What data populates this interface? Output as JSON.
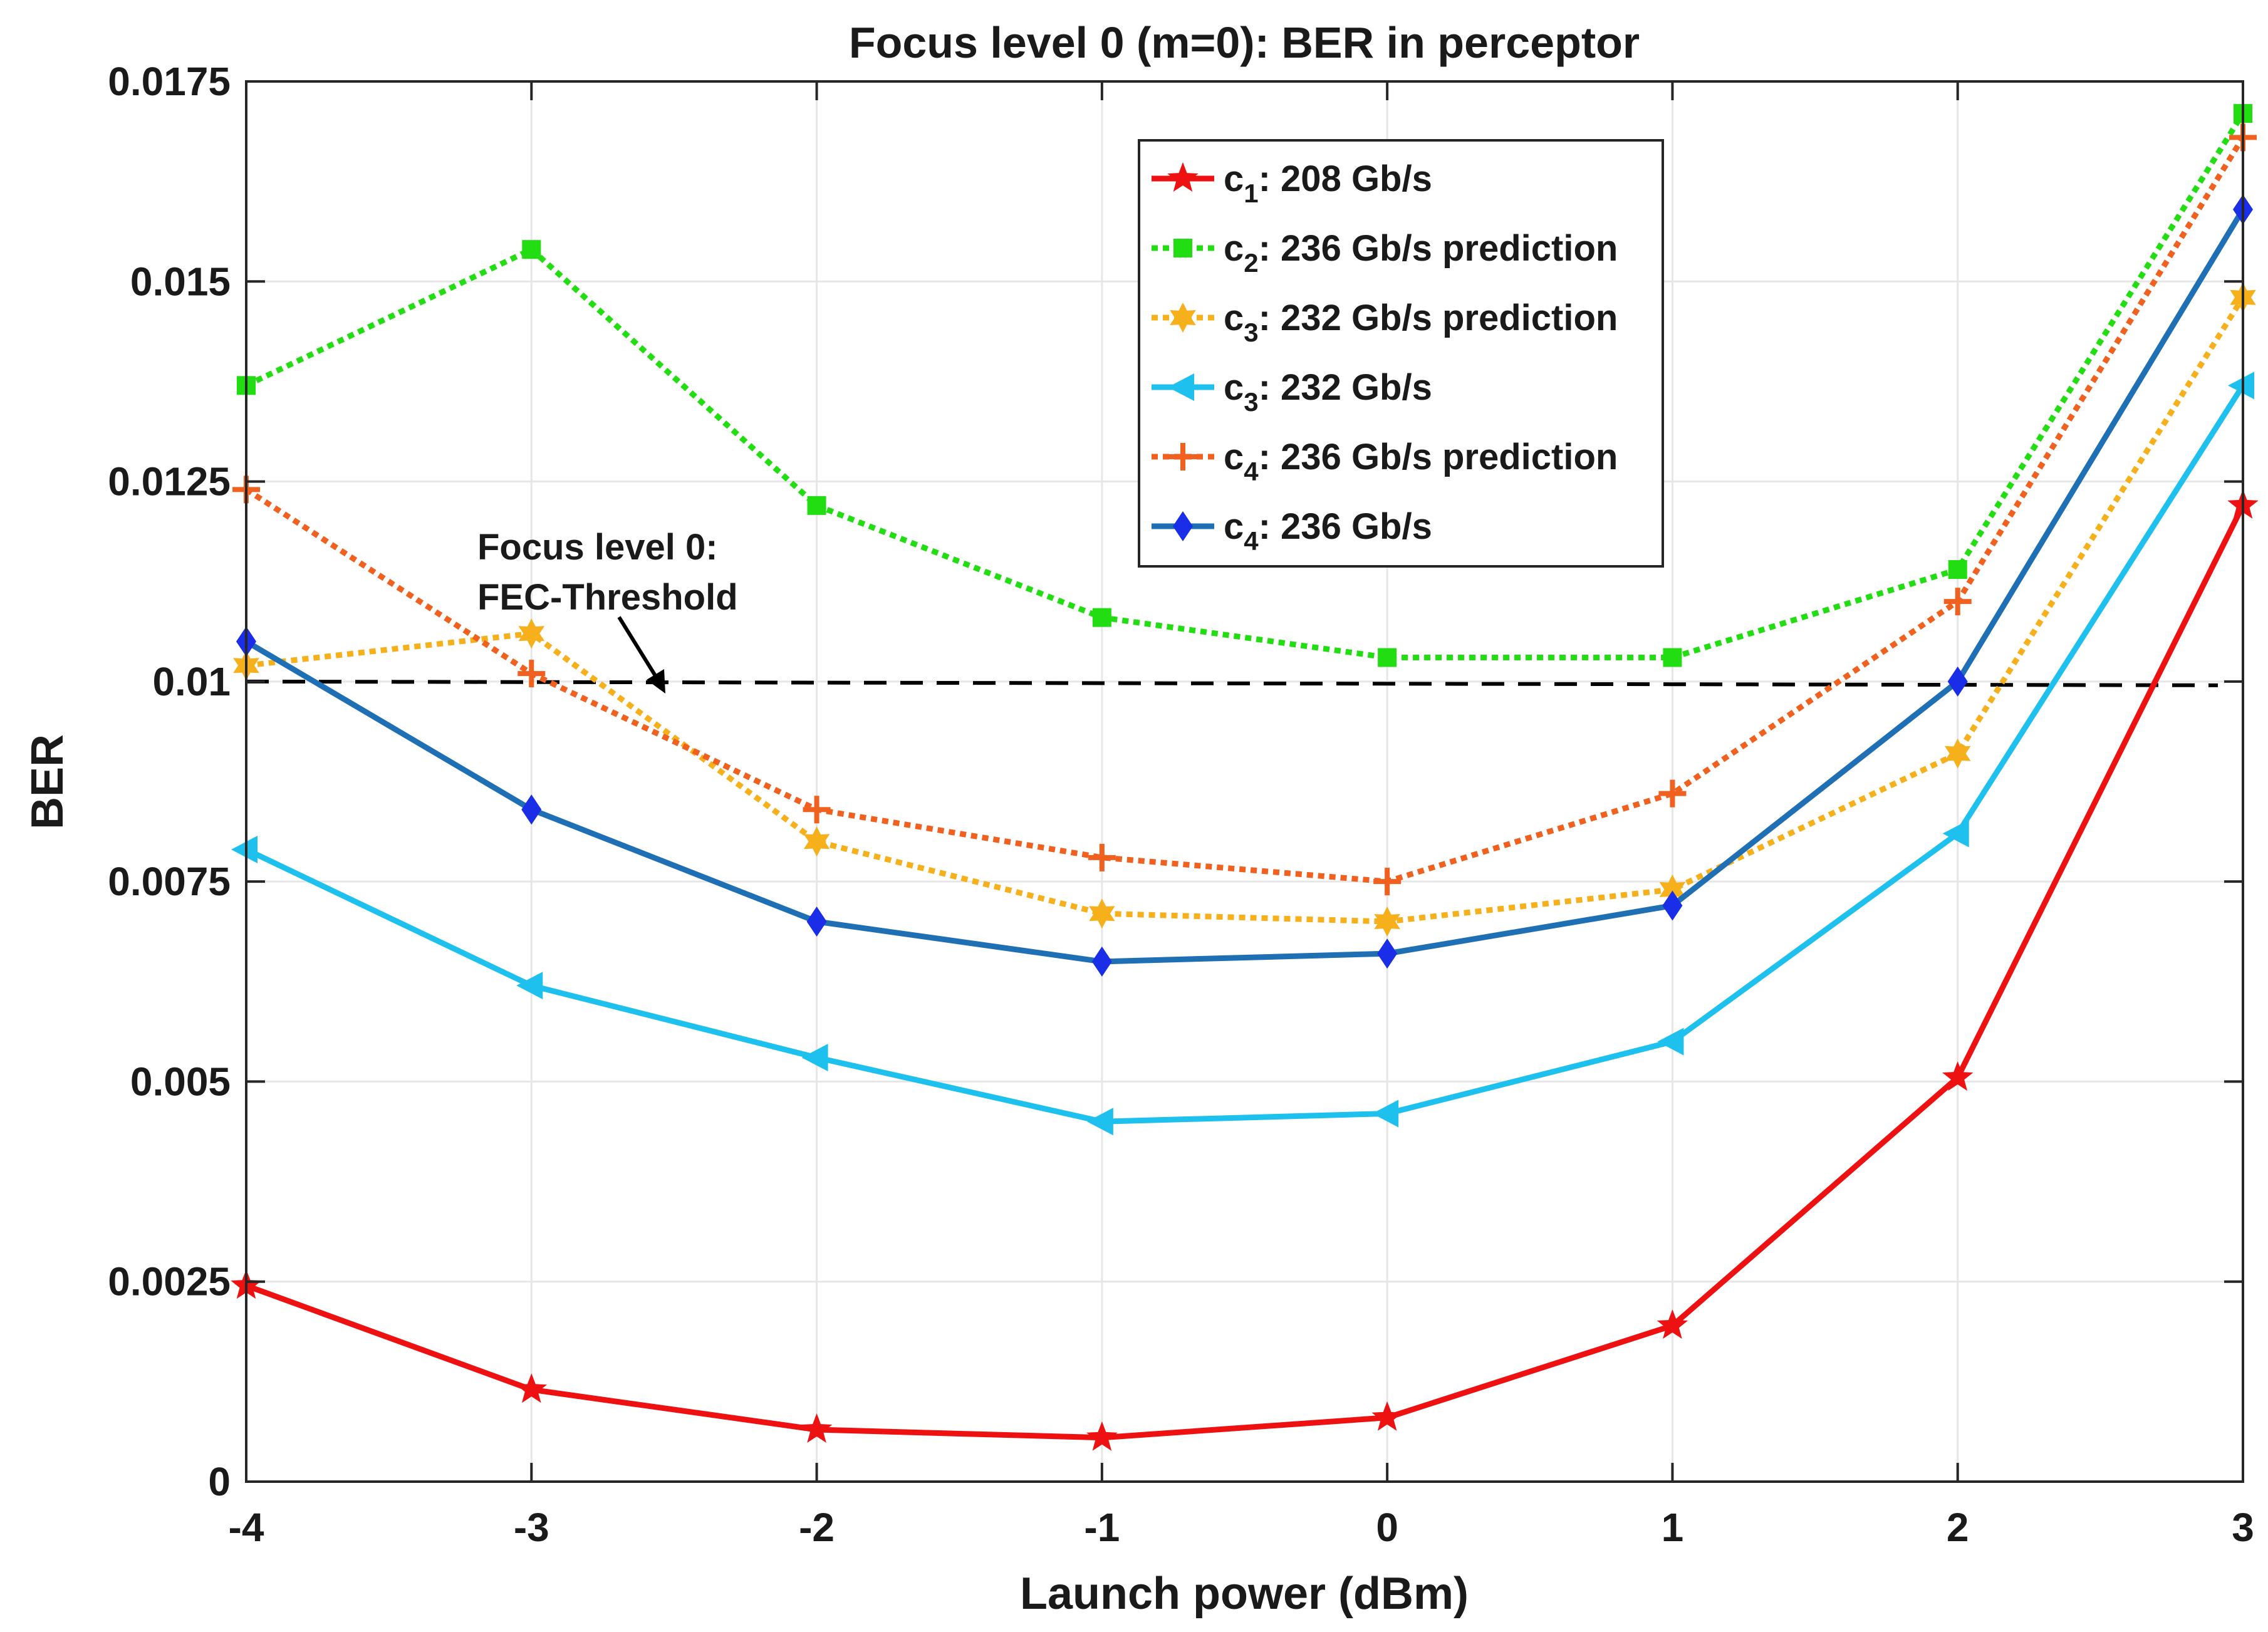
{
  "chart_data": {
    "type": "line",
    "title": "Focus level 0 (m=0): BER in perceptor",
    "xlabel": "Launch power (dBm)",
    "ylabel": "BER",
    "xlim": [
      -4,
      3
    ],
    "ylim": [
      0,
      0.0175
    ],
    "x": [
      -4,
      -3,
      -2,
      -1,
      0,
      1,
      2,
      3
    ],
    "xticks": [
      "-4",
      "-3",
      "-2",
      "-1",
      "0",
      "1",
      "2",
      "3"
    ],
    "yticks": [
      {
        "value": 0,
        "label": "0"
      },
      {
        "value": 0.0025,
        "label": "0.0025"
      },
      {
        "value": 0.005,
        "label": "0.005"
      },
      {
        "value": 0.0075,
        "label": "0.0075"
      },
      {
        "value": 0.01,
        "label": "0.01"
      },
      {
        "value": 0.0125,
        "label": "0.0125"
      },
      {
        "value": 0.015,
        "label": "0.015"
      },
      {
        "value": 0.0175,
        "label": "0.0175"
      }
    ],
    "grid": true,
    "legend_position": "top-right",
    "series": [
      {
        "key": "c1",
        "sub": "1",
        "rest": ": 208 Gb/s",
        "color": "#ee1111",
        "dash": "solid",
        "marker": "star",
        "values": [
          0.00245,
          0.00115,
          0.00065,
          0.00055,
          0.0008,
          0.00195,
          0.00505,
          0.0122
        ]
      },
      {
        "key": "c2p",
        "sub": "2",
        "rest": ": 236 Gb/s prediction",
        "color": "#22dd11",
        "dash": "dotted",
        "marker": "square",
        "values": [
          0.0137,
          0.0154,
          0.0122,
          0.0108,
          0.0103,
          0.0103,
          0.0114,
          0.0171
        ]
      },
      {
        "key": "c3p",
        "sub": "3",
        "rest": ": 232 Gb/s prediction",
        "color": "#f5b01b",
        "dash": "dotted",
        "marker": "hexagram",
        "values": [
          0.0102,
          0.0106,
          0.008,
          0.0071,
          0.007,
          0.0074,
          0.0091,
          0.0148
        ]
      },
      {
        "key": "c3",
        "sub": "3",
        "rest": ": 232 Gb/s",
        "color": "#1ec1ee",
        "dash": "solid",
        "marker": "triangle-left",
        "values": [
          0.0079,
          0.0062,
          0.0053,
          0.0045,
          0.0046,
          0.0055,
          0.0081,
          0.0137
        ]
      },
      {
        "key": "c4p",
        "sub": "4",
        "rest": ": 236 Gb/s prediction",
        "color": "#f0601e",
        "dash": "dotted",
        "marker": "plus",
        "values": [
          0.0124,
          0.0101,
          0.0084,
          0.0078,
          0.0075,
          0.0086,
          0.011,
          0.0168
        ]
      },
      {
        "key": "c4",
        "sub": "4",
        "rest": ": 236 Gb/s",
        "color": "#1f6fb5",
        "marker_color": "#1a2ee8",
        "dash": "solid",
        "marker": "diamond",
        "values": [
          0.0105,
          0.0084,
          0.007,
          0.0065,
          0.0066,
          0.0072,
          0.01,
          0.0159
        ]
      }
    ],
    "threshold": {
      "value": 0.01,
      "color": "#000000",
      "label_line1": "Focus level 0:",
      "label_line2": "FEC-Threshold"
    },
    "legend_prefix": "c"
  }
}
